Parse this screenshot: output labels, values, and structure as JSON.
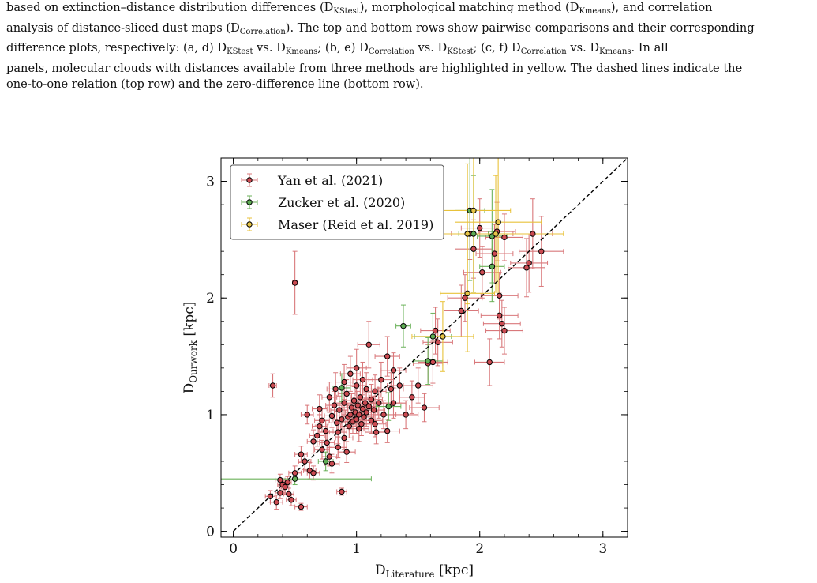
{
  "caption": {
    "lines": [
      [
        {
          "t": "based on extinction–distance distribution differences (D"
        },
        {
          "s": "KStest"
        },
        {
          "t": "), morphological matching method (D"
        },
        {
          "s": "Kmeans"
        },
        {
          "t": "), and correlation"
        }
      ],
      [
        {
          "t": "analysis of distance-sliced dust maps (D"
        },
        {
          "s": "Correlation"
        },
        {
          "t": "). The top and bottom rows show pairwise comparisons and their corresponding"
        }
      ],
      [
        {
          "t": "difference plots, respectively: (a, d) D"
        },
        {
          "s": "KStest"
        },
        {
          "t": " vs. D"
        },
        {
          "s": "Kmeans"
        },
        {
          "t": "; (b, e) D"
        },
        {
          "s": "Correlation"
        },
        {
          "t": " vs. D"
        },
        {
          "s": "KStest"
        },
        {
          "t": "; (c, f) D"
        },
        {
          "s": "Correlation"
        },
        {
          "t": " vs. D"
        },
        {
          "s": "Kmeans"
        },
        {
          "t": ". In all"
        }
      ],
      [
        {
          "t": "panels, molecular clouds with distances available from three methods are highlighted in yellow. The dashed lines indicate the"
        }
      ],
      [
        {
          "t": "one-to-one relation (top row) and the zero-difference line (bottom row)."
        }
      ]
    ]
  },
  "chart_data": {
    "type": "scatter",
    "xlabel_main": "D",
    "xlabel_sub": "Literature",
    "xlabel_unit": " [kpc]",
    "ylabel_main": "D",
    "ylabel_sub": "Ourwork",
    "ylabel_unit": " [kpc]",
    "xlim": [
      -0.1,
      3.2
    ],
    "ylim": [
      -0.05,
      3.2
    ],
    "xticks": [
      0,
      1,
      2,
      3
    ],
    "yticks": [
      0,
      1,
      2,
      3
    ],
    "grid": false,
    "legend_position": "top-left",
    "reference_line": "one-to-one",
    "colors": {
      "yan": "#d9787b",
      "zucker": "#6bb25a",
      "maser": "#e8c23a"
    },
    "series": [
      {
        "name": "Yan et al. (2021)",
        "key": "yan",
        "marker_fill": "#cc4b52",
        "points": [
          [
            0.32,
            1.25,
            0.03,
            0.1
          ],
          [
            0.5,
            2.13,
            0.02,
            0.27
          ],
          [
            0.3,
            0.3,
            0.04,
            0.05
          ],
          [
            0.35,
            0.25,
            0.05,
            0.06
          ],
          [
            0.38,
            0.33,
            0.04,
            0.05
          ],
          [
            0.4,
            0.4,
            0.04,
            0.05
          ],
          [
            0.42,
            0.38,
            0.03,
            0.05
          ],
          [
            0.44,
            0.42,
            0.03,
            0.05
          ],
          [
            0.38,
            0.44,
            0.04,
            0.05
          ],
          [
            0.45,
            0.32,
            0.04,
            0.05
          ],
          [
            0.47,
            0.27,
            0.04,
            0.05
          ],
          [
            0.5,
            0.5,
            0.05,
            0.06
          ],
          [
            0.55,
            0.21,
            0.05,
            0.03
          ],
          [
            0.55,
            0.66,
            0.05,
            0.07
          ],
          [
            0.58,
            0.6,
            0.05,
            0.07
          ],
          [
            0.62,
            0.52,
            0.05,
            0.07
          ],
          [
            0.6,
            1.0,
            0.05,
            0.08
          ],
          [
            0.65,
            0.77,
            0.05,
            0.1
          ],
          [
            0.68,
            0.82,
            0.06,
            0.09
          ],
          [
            0.7,
            0.9,
            0.06,
            0.1
          ],
          [
            0.72,
            0.95,
            0.06,
            0.1
          ],
          [
            0.72,
            0.7,
            0.06,
            0.08
          ],
          [
            0.75,
            0.86,
            0.06,
            0.09
          ],
          [
            0.76,
            0.76,
            0.06,
            0.09
          ],
          [
            0.78,
            0.64,
            0.06,
            0.08
          ],
          [
            0.8,
            0.58,
            0.06,
            0.08
          ],
          [
            0.8,
            0.99,
            0.06,
            0.1
          ],
          [
            0.82,
            1.08,
            0.07,
            0.12
          ],
          [
            0.84,
            0.93,
            0.07,
            0.1
          ],
          [
            0.85,
            0.85,
            0.07,
            0.1
          ],
          [
            0.86,
            1.04,
            0.07,
            0.12
          ],
          [
            0.88,
            0.96,
            0.07,
            0.1
          ],
          [
            0.88,
            0.34,
            0.04,
            0.03
          ],
          [
            0.9,
            0.8,
            0.07,
            0.1
          ],
          [
            0.9,
            1.1,
            0.07,
            0.12
          ],
          [
            0.92,
            1.18,
            0.07,
            0.12
          ],
          [
            0.93,
            0.98,
            0.07,
            0.1
          ],
          [
            0.94,
            0.9,
            0.07,
            0.1
          ],
          [
            0.95,
            1.0,
            0.07,
            0.12
          ],
          [
            0.96,
            1.06,
            0.08,
            0.12
          ],
          [
            0.97,
            0.94,
            0.08,
            0.1
          ],
          [
            0.98,
            1.12,
            0.08,
            0.12
          ],
          [
            0.99,
            1.02,
            0.08,
            0.12
          ],
          [
            1.0,
            0.96,
            0.08,
            0.12
          ],
          [
            1.0,
            1.25,
            0.08,
            0.14
          ],
          [
            1.01,
            1.08,
            0.08,
            0.12
          ],
          [
            1.02,
            1.0,
            0.08,
            0.12
          ],
          [
            1.03,
            1.15,
            0.08,
            0.13
          ],
          [
            1.04,
            0.92,
            0.08,
            0.1
          ],
          [
            1.05,
            1.05,
            0.08,
            0.12
          ],
          [
            1.05,
            1.3,
            0.08,
            0.15
          ],
          [
            1.06,
            0.98,
            0.08,
            0.12
          ],
          [
            1.07,
            1.1,
            0.08,
            0.12
          ],
          [
            1.08,
            1.02,
            0.09,
            0.12
          ],
          [
            1.08,
            1.22,
            0.09,
            0.14
          ],
          [
            1.1,
            1.07,
            0.09,
            0.12
          ],
          [
            1.1,
            1.6,
            0.09,
            0.2
          ],
          [
            1.12,
            0.95,
            0.09,
            0.11
          ],
          [
            1.12,
            1.13,
            0.09,
            0.13
          ],
          [
            1.14,
            1.04,
            0.09,
            0.12
          ],
          [
            1.15,
            1.2,
            0.09,
            0.14
          ],
          [
            1.16,
            0.85,
            0.09,
            0.1
          ],
          [
            1.18,
            1.1,
            0.1,
            0.13
          ],
          [
            1.2,
            1.3,
            0.1,
            0.15
          ],
          [
            1.22,
            1.0,
            0.1,
            0.12
          ],
          [
            1.25,
            1.5,
            0.1,
            0.17
          ],
          [
            1.28,
            1.22,
            0.1,
            0.14
          ],
          [
            1.3,
            1.1,
            0.1,
            0.13
          ],
          [
            1.35,
            1.25,
            0.1,
            0.15
          ],
          [
            1.4,
            1.0,
            0.1,
            0.12
          ],
          [
            1.45,
            1.15,
            0.1,
            0.14
          ],
          [
            1.5,
            1.25,
            0.12,
            0.15
          ],
          [
            1.55,
            1.06,
            0.12,
            0.12
          ],
          [
            1.58,
            1.44,
            0.12,
            0.16
          ],
          [
            1.62,
            1.45,
            0.12,
            0.18
          ],
          [
            1.64,
            1.72,
            0.12,
            0.2
          ],
          [
            1.66,
            1.62,
            0.12,
            0.2
          ],
          [
            1.85,
            1.89,
            0.14,
            0.22
          ],
          [
            1.88,
            2.0,
            0.14,
            0.2
          ],
          [
            1.92,
            2.55,
            0.15,
            0.22
          ],
          [
            1.95,
            2.42,
            0.15,
            0.25
          ],
          [
            2.0,
            2.6,
            0.15,
            0.25
          ],
          [
            2.02,
            2.22,
            0.15,
            0.22
          ],
          [
            2.08,
            1.45,
            0.12,
            0.2
          ],
          [
            2.12,
            2.38,
            0.15,
            0.25
          ],
          [
            2.14,
            2.57,
            0.15,
            0.25
          ],
          [
            2.16,
            2.02,
            0.15,
            0.2
          ],
          [
            2.16,
            1.85,
            0.15,
            0.2
          ],
          [
            2.18,
            1.78,
            0.15,
            0.2
          ],
          [
            2.2,
            1.72,
            0.15,
            0.2
          ],
          [
            2.2,
            2.52,
            0.15,
            0.2
          ],
          [
            2.38,
            2.26,
            0.15,
            0.25
          ],
          [
            2.4,
            2.3,
            0.15,
            0.25
          ],
          [
            2.43,
            2.55,
            0.16,
            0.3
          ],
          [
            2.5,
            2.4,
            0.18,
            0.3
          ],
          [
            0.65,
            0.5,
            0.05,
            0.06
          ],
          [
            0.7,
            1.05,
            0.06,
            0.12
          ],
          [
            0.78,
            1.15,
            0.06,
            0.13
          ],
          [
            0.83,
            1.22,
            0.07,
            0.14
          ],
          [
            0.9,
            1.28,
            0.07,
            0.15
          ],
          [
            0.95,
            1.35,
            0.08,
            0.15
          ],
          [
            1.0,
            1.4,
            0.08,
            0.16
          ],
          [
            0.85,
            0.72,
            0.07,
            0.09
          ],
          [
            0.92,
            0.68,
            0.07,
            0.09
          ],
          [
            1.02,
            0.88,
            0.08,
            0.11
          ],
          [
            1.15,
            0.92,
            0.09,
            0.11
          ],
          [
            1.25,
            0.86,
            0.1,
            0.1
          ],
          [
            1.3,
            1.38,
            0.1,
            0.15
          ]
        ]
      },
      {
        "name": "Zucker et al. (2020)",
        "key": "zucker",
        "marker_fill": "#5fae55",
        "points": [
          [
            0.5,
            0.45,
            0.62,
            0.05
          ],
          [
            0.75,
            0.6,
            0.06,
            0.08
          ],
          [
            0.88,
            1.23,
            0.07,
            0.12
          ],
          [
            1.26,
            1.07,
            0.1,
            0.12
          ],
          [
            1.38,
            1.76,
            0.06,
            0.18
          ],
          [
            1.58,
            1.46,
            0.12,
            0.2
          ],
          [
            1.62,
            1.67,
            0.15,
            0.2
          ],
          [
            1.92,
            2.75,
            0.12,
            0.6
          ],
          [
            1.95,
            2.55,
            0.12,
            0.5
          ],
          [
            2.1,
            2.53,
            0.12,
            0.4
          ],
          [
            2.1,
            2.27,
            0.1,
            0.3
          ]
        ]
      },
      {
        "name": "Maser (Reid et al. 2019)",
        "key": "maser",
        "marker_fill": "#e8c547",
        "points": [
          [
            1.7,
            1.67,
            0.25,
            0.3
          ],
          [
            1.9,
            2.04,
            0.22,
            0.5
          ],
          [
            1.9,
            2.55,
            0.3,
            0.6
          ],
          [
            1.95,
            2.75,
            0.3,
            0.7
          ],
          [
            2.13,
            2.55,
            0.55,
            0.5
          ],
          [
            2.15,
            2.65,
            0.35,
            0.6
          ]
        ]
      }
    ]
  }
}
